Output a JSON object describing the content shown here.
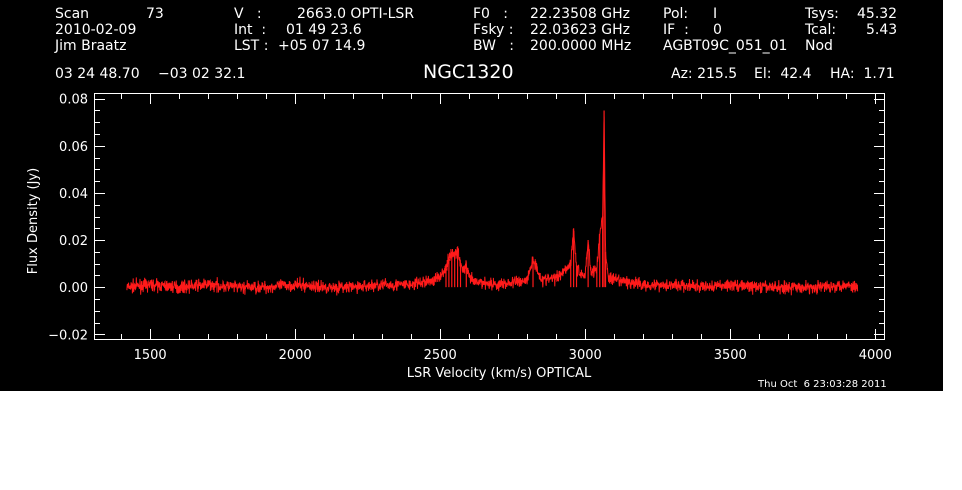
{
  "header": {
    "scan_label": "Scan",
    "scan_value": "73",
    "date": "2010-02-09",
    "observer": "Jim Braatz",
    "v_label": "V   :",
    "v_value": "2663.0 OPTI-LSR",
    "int_label": "Int  :",
    "int_value": "01 49 23.6",
    "lst_label": "LST :",
    "lst_value": "+05 07 14.9",
    "f0_label": "F0   :",
    "f0_value": "22.23508 GHz",
    "fsky_label": "Fsky :",
    "fsky_value": "22.03623 GHz",
    "bw_label": "BW   :",
    "bw_value": "200.0000 MHz",
    "pol_label": "Pol:",
    "pol_value": "I",
    "if_label": "IF  :",
    "if_value": "0",
    "project": "AGBT09C_051_01",
    "tsys_label": "Tsys:",
    "tsys_value": "45.32",
    "tcal_label": "Tcal:",
    "tcal_value": "5.43",
    "mode": "Nod",
    "ra": "03 24 48.70",
    "dec": "−03 02 32.1",
    "source": "NGC1320",
    "az": "Az: 215.5",
    "el": "El:  42.4",
    "ha": "HA:  1.71",
    "timestamp": "Thu Oct  6 23:03:28 2011"
  },
  "chart_data": {
    "type": "line",
    "xlabel": "LSR Velocity (km/s) OPTICAL",
    "ylabel": "Flux Density (Jy)",
    "xlim": [
      1310,
      4030
    ],
    "ylim": [
      -0.022,
      0.082
    ],
    "x_ticks": [
      1500,
      2000,
      2500,
      3000,
      3500,
      4000
    ],
    "x_tick_labels": [
      "1500",
      "2000",
      "2500",
      "3000",
      "3500",
      "4000"
    ],
    "y_ticks": [
      -0.02,
      0.0,
      0.02,
      0.04,
      0.06,
      0.08
    ],
    "y_tick_labels": [
      "−0.02",
      "0.00",
      "0.02",
      "0.04",
      "0.06",
      "0.08"
    ],
    "series_color": "#ff1a1a",
    "series": [
      {
        "x": [
          1420,
          1500,
          1600,
          1700,
          1800,
          1900,
          2000,
          2100,
          2200,
          2300,
          2400,
          2440,
          2480,
          2500,
          2520,
          2530,
          2540,
          2550,
          2560,
          2570,
          2580,
          2590,
          2600,
          2610,
          2620,
          2650,
          2700,
          2750,
          2800,
          2820,
          2850,
          2900,
          2950,
          2960,
          2970,
          2980,
          3000,
          3010,
          3020,
          3040,
          3050,
          3060,
          3065,
          3070,
          3080,
          3100,
          3200,
          3300,
          3400,
          3500,
          3600,
          3700,
          3800,
          3900,
          3940
        ],
        "y": [
          0.0,
          0.001,
          0.0,
          0.001,
          0.0,
          0.0,
          0.001,
          0.0,
          0.0,
          0.001,
          0.001,
          0.002,
          0.003,
          0.005,
          0.008,
          0.012,
          0.015,
          0.013,
          0.016,
          0.01,
          0.007,
          0.009,
          0.004,
          0.003,
          0.002,
          0.002,
          0.001,
          0.002,
          0.003,
          0.012,
          0.003,
          0.004,
          0.01,
          0.025,
          0.008,
          0.006,
          0.005,
          0.02,
          0.006,
          0.008,
          0.022,
          0.03,
          0.075,
          0.015,
          0.004,
          0.003,
          0.001,
          0.001,
          0.0,
          0.001,
          0.0,
          0.0,
          0.0,
          0.001,
          0.0
        ]
      }
    ]
  }
}
